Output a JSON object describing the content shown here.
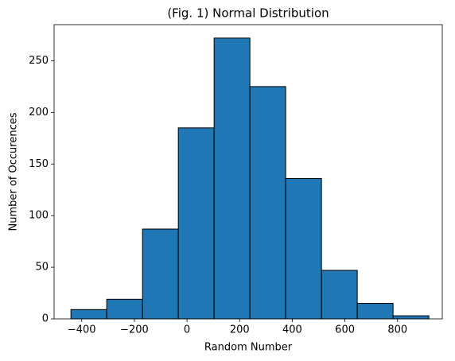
{
  "chart_data": {
    "type": "histogram",
    "title": "(Fig. 1) Normal Distribution",
    "x_label": "Random Number",
    "y_label": "Number of Occurences",
    "bins": [
      -441,
      -305,
      -169,
      -33,
      103,
      239,
      375,
      511,
      647,
      783,
      919
    ],
    "values": [
      9,
      19,
      87,
      185,
      272,
      225,
      136,
      47,
      15,
      3
    ],
    "color": "#1f77b4",
    "edgecolor": "#000000",
    "xlim": [
      -505,
      970
    ],
    "ylim": [
      0,
      285
    ],
    "xticks": [
      {
        "value": -400,
        "label": "−400"
      },
      {
        "value": -200,
        "label": "−200"
      },
      0,
      200,
      400,
      600,
      800
    ],
    "yticks": [
      0,
      50,
      100,
      150,
      200,
      250
    ]
  }
}
